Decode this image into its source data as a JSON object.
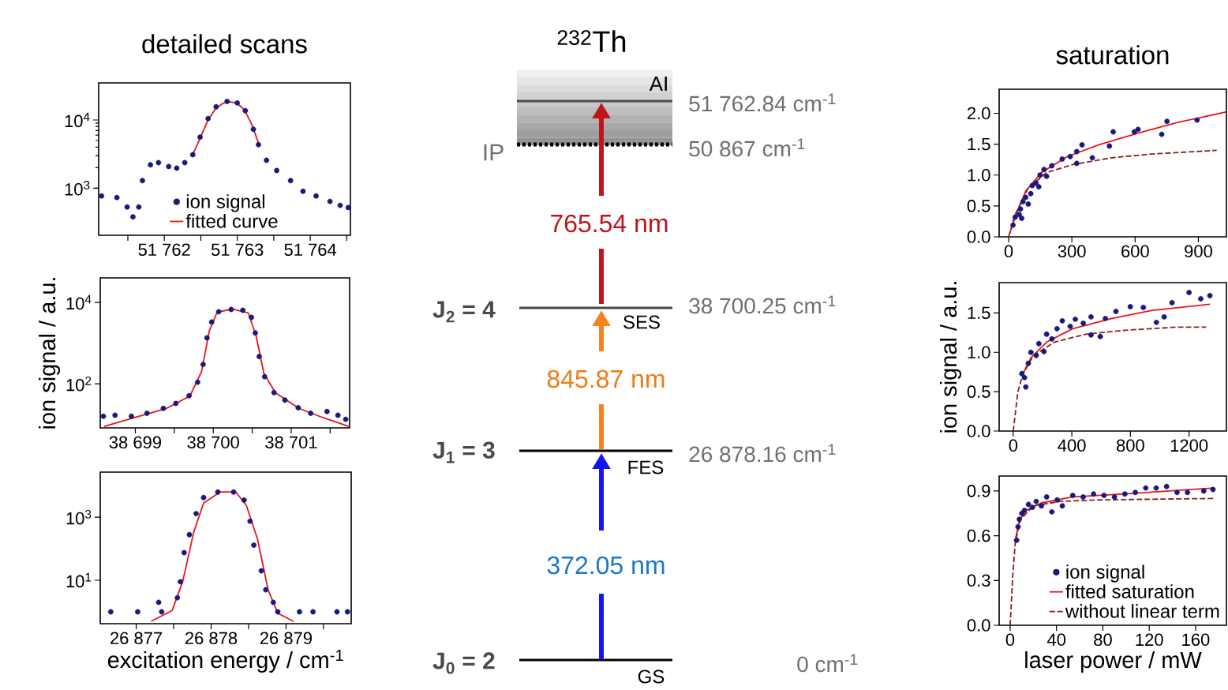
{
  "chart_data": [
    {
      "type": "scatter",
      "title": "detailed scans",
      "log": "y",
      "legend": "bottom",
      "xlim": [
        51761.1,
        51764.55
      ],
      "ylim": [
        204,
        35000
      ],
      "xticks": [
        {
          "value": 51761.5,
          "label": null
        },
        {
          "value": 51762,
          "label": "51 762"
        },
        {
          "value": 51762.5,
          "label": null
        },
        {
          "value": 51763,
          "label": "51 763"
        },
        {
          "value": 51763.5,
          "label": null
        },
        {
          "value": 51764,
          "label": "51 764"
        },
        {
          "value": 51764.5,
          "label": null
        }
      ],
      "yticks": [
        {
          "value": 1000,
          "label": "10$^{3}$"
        },
        {
          "value": 10000,
          "label": "10$^{4}$"
        }
      ],
      "series": [
        {
          "name": "ion signal",
          "type": "scatter",
          "marker": "circle",
          "color": "#1a1a7e",
          "x": [
            51761.14,
            51761.35,
            51761.49,
            51761.57,
            51761.65,
            51761.7,
            51761.81,
            51761.92,
            51762.06,
            51762.17,
            51762.28,
            51762.39,
            51762.49,
            51762.6,
            51762.71,
            51762.86,
            51763.0,
            51763.11,
            51763.22,
            51763.29,
            51763.4,
            51763.54,
            51763.73,
            51763.9,
            51764.08,
            51764.27,
            51764.41,
            51764.52
          ],
          "values": [
            770,
            730,
            530,
            380,
            530,
            1290,
            2200,
            2370,
            2080,
            1970,
            2370,
            3100,
            5600,
            10500,
            15600,
            18700,
            17800,
            13700,
            7300,
            4350,
            2570,
            1820,
            1290,
            900,
            770,
            640,
            560,
            520
          ]
        },
        {
          "name": "fitted curve",
          "type": "line",
          "color": "#e8161c",
          "x": [
            51762.4,
            51762.5,
            51762.6,
            51762.7,
            51762.8,
            51762.9,
            51763.0,
            51763.1,
            51763.2,
            51763.3
          ],
          "values": [
            3300,
            5700,
            10000,
            14500,
            17500,
            18500,
            17500,
            14000,
            8500,
            4300
          ]
        }
      ]
    },
    {
      "type": "scatter",
      "ylabel": "ion signal / a.u.",
      "log": "y",
      "xlim": [
        38698.55,
        38701.75
      ],
      "ylim": [
        8.3,
        40000
      ],
      "xticks": [
        {
          "value": 38699,
          "label": "38 699"
        },
        {
          "value": 38699.5,
          "label": null
        },
        {
          "value": 38700,
          "label": "38 700"
        },
        {
          "value": 38700.5,
          "label": null
        },
        {
          "value": 38701,
          "label": "38 701"
        },
        {
          "value": 38701.5,
          "label": null
        }
      ],
      "yticks": [
        {
          "value": 100,
          "label": "10$^{2}$"
        },
        {
          "value": 10000,
          "label": "10$^{4}$"
        }
      ],
      "series": [
        {
          "type": "scatter",
          "marker": "circle",
          "color": "#1a1a7e",
          "x": [
            38698.59,
            38698.74,
            38698.95,
            38699.15,
            38699.36,
            38699.52,
            38699.69,
            38699.8,
            38699.87,
            38699.92,
            38699.98,
            38700.07,
            38700.23,
            38700.38,
            38700.49,
            38700.54,
            38700.59,
            38700.66,
            38700.78,
            38700.92,
            38701.09,
            38701.25,
            38701.46,
            38701.6,
            38701.7
          ],
          "values": [
            16,
            17,
            16,
            19,
            25,
            33,
            51,
            110,
            300,
            1350,
            3300,
            5900,
            6700,
            6400,
            4300,
            1780,
            470,
            150,
            61,
            40,
            26,
            19,
            21,
            17,
            13.5
          ]
        },
        {
          "type": "line",
          "color": "#e8161c",
          "x": [
            38698.6,
            38699.0,
            38699.4,
            38699.7,
            38699.85,
            38699.95,
            38700.05,
            38700.25,
            38700.45,
            38700.55,
            38700.65,
            38700.8,
            38701.1,
            38701.4,
            38701.74
          ],
          "values": [
            9,
            15,
            25,
            50,
            200,
            2000,
            5800,
            6800,
            5500,
            1500,
            180,
            60,
            25,
            15,
            9
          ]
        }
      ]
    },
    {
      "type": "scatter",
      "xlabel": "excitation energy / cm$^{-1}$",
      "log": "y",
      "xlim": [
        26876.52,
        26879.87
      ],
      "ylim": [
        0.42,
        27000
      ],
      "xticks": [
        {
          "value": 26877,
          "label": "26 877"
        },
        {
          "value": 26877.5,
          "label": null
        },
        {
          "value": 26878,
          "label": "26 878"
        },
        {
          "value": 26878.5,
          "label": null
        },
        {
          "value": 26879,
          "label": "26 879"
        },
        {
          "value": 26879.5,
          "label": null
        }
      ],
      "yticks": [
        {
          "value": 10,
          "label": "10$^{1}$"
        },
        {
          "value": 1000,
          "label": "10$^{3}$"
        }
      ],
      "series": [
        {
          "type": "scatter",
          "marker": "circle",
          "color": "#1a1a7e",
          "x": [
            26876.66,
            26877.02,
            26877.3,
            26877.34,
            26877.55,
            26877.59,
            26877.64,
            26877.71,
            26877.8,
            26877.9,
            26878.09,
            26878.3,
            26878.44,
            26878.52,
            26878.57,
            26878.67,
            26878.73,
            26878.83,
            26878.89,
            26879.18,
            26879.36,
            26879.68,
            26879.82
          ],
          "values": [
            1,
            1,
            2,
            1,
            2.8,
            9,
            75,
            280,
            1300,
            4200,
            6300,
            6300,
            3500,
            750,
            130,
            20,
            5,
            2,
            1,
            1,
            1,
            1,
            1
          ]
        },
        {
          "type": "line",
          "color": "#e8161c",
          "x": [
            26877.2,
            26877.48,
            26877.62,
            26877.77,
            26877.9,
            26878.12,
            26878.33,
            26878.47,
            26878.62,
            26878.76,
            26878.89,
            26879.1
          ],
          "values": [
            0.5,
            1.1,
            9,
            350,
            2800,
            6300,
            6300,
            2400,
            200,
            5,
            0.9,
            0.5
          ]
        }
      ]
    },
    {
      "type": "other",
      "title": "$^{232}$Th",
      "annotations": [
        "AI",
        "IP",
        "51 762.84 cm$^{-1}$",
        "50 867 cm$^{-1}$",
        "765.54 nm",
        "J$_{2}$ = 4",
        "SES",
        "38 700.25 cm$^{-1}$",
        "845.87 nm",
        "J$_{1}$ = 3",
        "FES",
        "26 878.16 cm$^{-1}$",
        "372.05 nm",
        "J$_{0}$ = 2",
        "GS",
        "0 cm$^{-1}$"
      ]
    },
    {
      "type": "scatter",
      "title": "saturation",
      "xlim": [
        -45,
        1033
      ],
      "ylim": [
        0,
        2.39
      ],
      "xticks": [
        0,
        300,
        600,
        900
      ],
      "yticks": [
        {
          "value": 0,
          "label": "0.0"
        },
        {
          "value": 0.5,
          "label": "0.5"
        },
        {
          "value": 1,
          "label": "1.0"
        },
        {
          "value": 1.5,
          "label": "1.5"
        },
        {
          "value": 2,
          "label": "2.0"
        }
      ],
      "series": [
        {
          "type": "scatter",
          "marker": "circle",
          "color": "#1a1a7e",
          "x": [
            21,
            31,
            50,
            56,
            62,
            68,
            81,
            93,
            105,
            112,
            130,
            143,
            149,
            168,
            180,
            205,
            254,
            292,
            323,
            323,
            348,
            397,
            478,
            496,
            596,
            614,
            726,
            751,
            894
          ],
          "values": [
            0.19,
            0.32,
            0.36,
            0.45,
            0.3,
            0.57,
            0.64,
            0.53,
            0.7,
            0.83,
            0.87,
            0.81,
            1.0,
            1.09,
            0.98,
            1.15,
            1.26,
            1.3,
            1.19,
            1.38,
            1.49,
            1.28,
            1.47,
            1.7,
            1.7,
            1.74,
            1.66,
            1.87,
            1.89
          ]
        },
        {
          "type": "line",
          "color": "#e8161c",
          "x": [
            6,
            31,
            81,
            155,
            279,
            428,
            614,
            800,
            1030
          ],
          "values": [
            0.06,
            0.32,
            0.74,
            1.04,
            1.3,
            1.49,
            1.68,
            1.85,
            2.02
          ]
        },
        {
          "type": "line",
          "line_style": "dashed",
          "color": "#8b1e1e",
          "x": [
            0,
            31,
            93,
            180,
            304,
            490,
            676,
            987
          ],
          "values": [
            0,
            0.36,
            0.79,
            1.04,
            1.17,
            1.28,
            1.34,
            1.4
          ]
        }
      ]
    },
    {
      "type": "scatter",
      "ylabel": "ion signal / a.u.",
      "xlim": [
        -96,
        1455
      ],
      "ylim": [
        0,
        1.885
      ],
      "xticks": [
        0,
        400,
        800,
        1200
      ],
      "yticks": [
        {
          "value": 0,
          "label": "0.0"
        },
        {
          "value": 0.5,
          "label": "0.5"
        },
        {
          "value": 1,
          "label": "1.0"
        },
        {
          "value": 1.5,
          "label": "1.5"
        }
      ],
      "series": [
        {
          "type": "scatter",
          "marker": "circle",
          "color": "#1a1a7e",
          "x": [
            59,
            77,
            86,
            103,
            121,
            157,
            175,
            210,
            228,
            264,
            299,
            335,
            389,
            424,
            478,
            531,
            531,
            594,
            629,
            701,
            799,
            888,
            977,
            1030,
            1084,
            1200,
            1280,
            1342
          ],
          "values": [
            0.73,
            0.68,
            0.56,
            0.86,
            1.0,
            0.96,
            1.11,
            1.01,
            1.23,
            1.17,
            1.3,
            1.4,
            1.33,
            1.42,
            1.37,
            1.22,
            1.45,
            1.2,
            1.43,
            1.52,
            1.58,
            1.57,
            1.38,
            1.45,
            1.63,
            1.76,
            1.68,
            1.72
          ]
        },
        {
          "type": "line",
          "color": "#e8161c",
          "x": [
            59,
            121,
            228,
            406,
            674,
            941,
            1342
          ],
          "values": [
            0.7,
            0.93,
            1.13,
            1.3,
            1.43,
            1.53,
            1.61
          ]
        },
        {
          "type": "line",
          "line_style": "dashed",
          "color": "#8b1e1e",
          "x": [
            0,
            32,
            68,
            139,
            282,
            496,
            763,
            1119,
            1316
          ],
          "values": [
            0,
            0.5,
            0.73,
            0.96,
            1.13,
            1.23,
            1.28,
            1.32,
            1.32
          ]
        }
      ]
    },
    {
      "type": "scatter",
      "xlabel": "laser power / mW",
      "legend": "bottom right",
      "xlim": [
        -9.5,
        186.6
      ],
      "ylim": [
        0,
        1.0
      ],
      "xticks": [
        0,
        40,
        80,
        120,
        160
      ],
      "yticks": [
        {
          "value": 0,
          "label": "0.0"
        },
        {
          "value": 0.3,
          "label": "0.3"
        },
        {
          "value": 0.6,
          "label": "0.6"
        },
        {
          "value": 0.9,
          "label": "0.9"
        }
      ],
      "series": [
        {
          "name": "ion signal",
          "type": "scatter",
          "marker": "circle",
          "color": "#1a1a7e",
          "x": [
            5.6,
            6.8,
            7.9,
            10.1,
            12.4,
            15.8,
            19.2,
            22.5,
            27,
            31.5,
            36,
            40.6,
            45,
            54,
            63,
            72,
            81,
            90,
            99,
            108,
            117,
            126,
            135,
            144,
            153,
            167,
            175
          ],
          "values": [
            0.57,
            0.66,
            0.71,
            0.75,
            0.77,
            0.81,
            0.79,
            0.83,
            0.8,
            0.86,
            0.76,
            0.84,
            0.8,
            0.87,
            0.86,
            0.88,
            0.87,
            0.86,
            0.88,
            0.89,
            0.92,
            0.92,
            0.93,
            0.89,
            0.89,
            0.9,
            0.91
          ]
        },
        {
          "name": "fitted saturation",
          "type": "line",
          "color": "#e8161c",
          "x": [
            4.5,
            7.9,
            13.5,
            27,
            54,
            99,
            176
          ],
          "values": [
            0.57,
            0.7,
            0.77,
            0.82,
            0.86,
            0.88,
            0.92
          ]
        },
        {
          "name": "without linear term",
          "type": "line",
          "line_style": "dashed",
          "color": "#8b1e1e",
          "x": [
            0,
            2.3,
            4.5,
            9,
            20,
            43,
            77,
            176
          ],
          "values": [
            0,
            0.34,
            0.56,
            0.71,
            0.8,
            0.83,
            0.84,
            0.85
          ]
        }
      ]
    }
  ]
}
